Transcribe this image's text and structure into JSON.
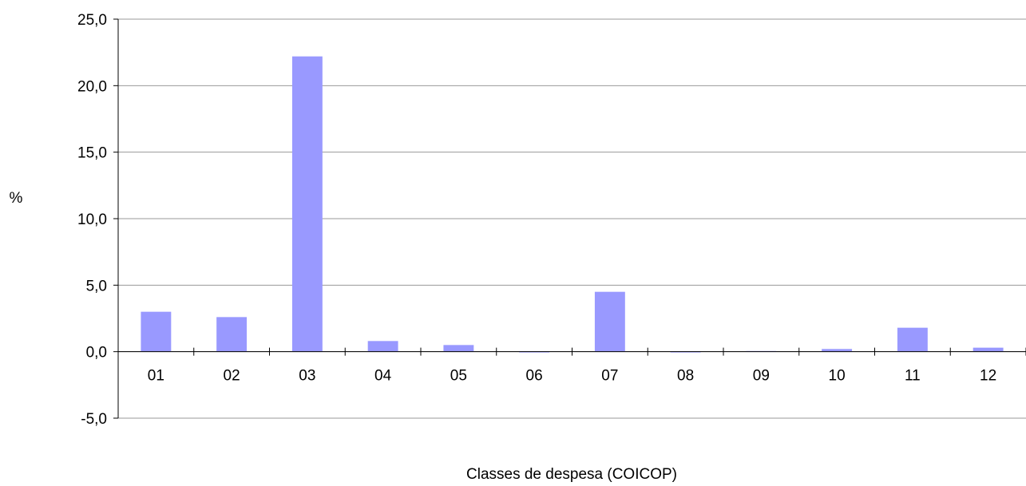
{
  "chart_data": {
    "type": "bar",
    "title": "",
    "xlabel": "Classes de despesa (COICOP)",
    "ylabel": "%",
    "categories": [
      "01",
      "02",
      "03",
      "04",
      "05",
      "06",
      "07",
      "08",
      "09",
      "10",
      "11",
      "12"
    ],
    "values": [
      3.0,
      2.6,
      22.2,
      0.8,
      0.5,
      0.0,
      4.5,
      0.0,
      0.05,
      0.2,
      1.8,
      0.3
    ],
    "ylim": [
      -5,
      25
    ],
    "yticks": [
      "-5,0",
      "0,0",
      "5,0",
      "10,0",
      "15,0",
      "20,0",
      "25,0"
    ],
    "ytick_values": [
      -5,
      0,
      5,
      10,
      15,
      20,
      25
    ],
    "grid": true,
    "legend": "none",
    "colors": {
      "bar": "#9999ff",
      "grid": "#999999",
      "axis": "#000000"
    }
  }
}
